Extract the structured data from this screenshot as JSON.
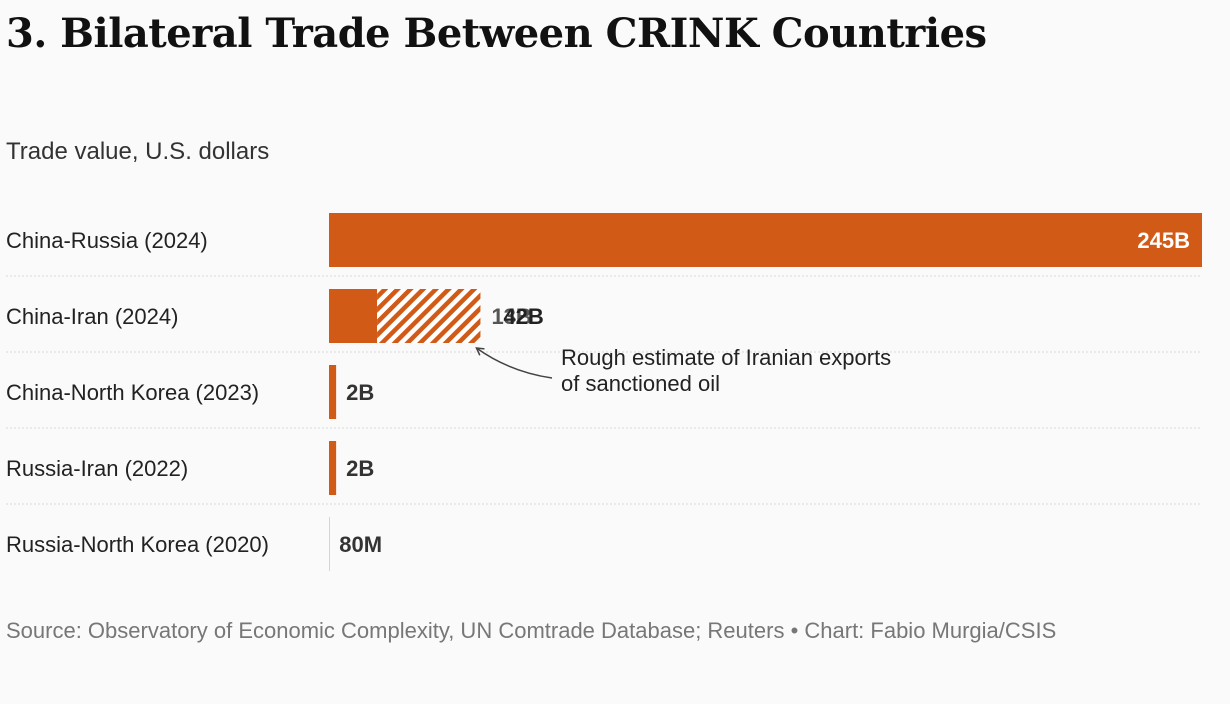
{
  "title": "3. Bilateral Trade Between CRINK Countries",
  "subtitle": "Trade value, U.S. dollars",
  "source": "Source: Observatory of Economic Complexity, UN Comtrade Database; Reuters • Chart: Fabio Murgia/CSIS",
  "colors": {
    "bar": "#d05a16",
    "text": "#222222",
    "value_label": "#333333",
    "inside_label": "#ffffff",
    "divider": "#d8d8d8",
    "arrow": "#444444"
  },
  "chart_data": {
    "type": "bar",
    "orientation": "horizontal",
    "title": "3. Bilateral Trade Between CRINK Countries",
    "subtitle": "Trade value, U.S. dollars",
    "unit": "billion USD",
    "xlim": [
      0,
      245
    ],
    "categories": [
      "China-Russia (2024)",
      "China-Iran (2024)",
      "China-North Korea (2023)",
      "Russia-Iran (2022)",
      "Russia-North Korea (2020)"
    ],
    "series": [
      {
        "name": "Trade value",
        "style": "solid",
        "values": [
          245,
          13.5,
          2,
          2,
          0.08
        ],
        "labels": [
          "245B",
          "13B",
          "2B",
          "2B",
          "80M"
        ]
      },
      {
        "name": "Rough estimate of Iranian exports of sanctioned oil",
        "style": "hatched",
        "values": [
          0,
          29,
          0,
          0,
          0
        ],
        "labels": [
          "",
          "42B",
          "",
          "",
          ""
        ]
      }
    ],
    "annotation": {
      "text_lines": [
        "Rough estimate of Iranian exports",
        "of sanctioned oil"
      ],
      "category": "China-Iran (2024)"
    }
  }
}
